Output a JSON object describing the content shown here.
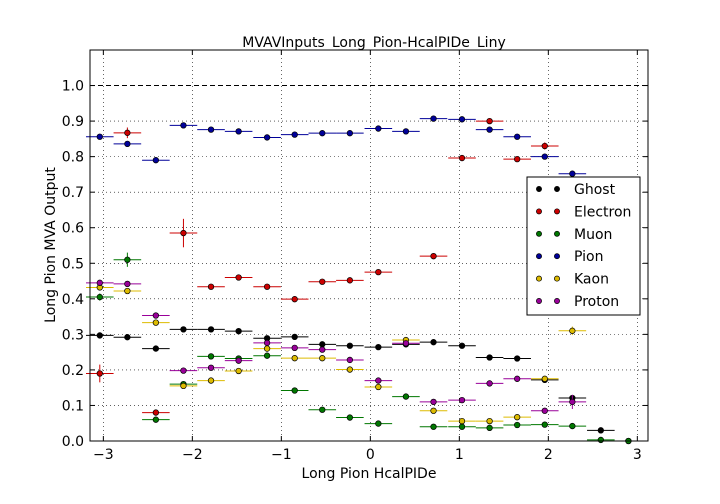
{
  "chart_data": {
    "type": "scatter",
    "title": "MVAVInputs_Long_Pion-HcalPIDe_Liny",
    "xlabel": "Long Pion HcalPIDe",
    "ylabel": "Long Pion MVA Output",
    "xlim": [
      -3.15,
      3.12
    ],
    "ylim": [
      0.0,
      1.1
    ],
    "xticks": [
      -3,
      -2,
      -1,
      0,
      1,
      2,
      3
    ],
    "yticks": [
      0.0,
      0.1,
      0.2,
      0.3,
      0.4,
      0.5,
      0.6,
      0.7,
      0.8,
      0.9,
      1.0
    ],
    "ytick_labels": [
      "0.0",
      "0.1",
      "0.2",
      "0.3",
      "0.4",
      "0.5",
      "0.6",
      "0.7",
      "0.8",
      "0.9",
      "1.0"
    ],
    "xtick_labels": [
      "−3",
      "−2",
      "−1",
      "0",
      "1",
      "2",
      "3"
    ],
    "grid": true,
    "reference_line": 1.0,
    "bin_half_width": 0.155,
    "legend_position": "right",
    "series": [
      {
        "name": "Ghost",
        "color": "#000000",
        "x": [
          -3.04,
          -2.73,
          -2.41,
          -2.1,
          -1.79,
          -1.48,
          -1.16,
          -0.85,
          -0.54,
          -0.23,
          0.09,
          0.4,
          0.71,
          1.03,
          1.34,
          1.65,
          1.96,
          2.27,
          2.59,
          2.9
        ],
        "y": [
          0.297,
          0.292,
          0.26,
          0.314,
          0.314,
          0.309,
          0.289,
          0.293,
          0.272,
          0.268,
          0.264,
          0.272,
          0.278,
          0.268,
          0.235,
          0.232,
          0.172,
          0.121,
          0.03,
          0.0
        ],
        "err": [
          0.006,
          0.006,
          0.005,
          0.004,
          0.004,
          0.004,
          0.004,
          0.004,
          0.004,
          0.004,
          0.004,
          0.004,
          0.004,
          0.004,
          0.004,
          0.004,
          0.004,
          0.004,
          0.004,
          0.004
        ]
      },
      {
        "name": "Electron",
        "color": "#cc0000",
        "x": [
          -3.04,
          -2.73,
          -2.41,
          -2.1,
          -1.79,
          -1.48,
          -1.16,
          -0.85,
          -0.54,
          -0.23,
          0.09,
          0.71,
          1.03,
          1.34,
          1.65,
          1.96
        ],
        "y": [
          0.19,
          0.867,
          0.08,
          0.585,
          0.434,
          0.46,
          0.434,
          0.399,
          0.448,
          0.452,
          0.475,
          0.52,
          0.796,
          0.9,
          0.793,
          0.83
        ],
        "err": [
          0.025,
          0.015,
          0.008,
          0.04,
          0.004,
          0.004,
          0.004,
          0.004,
          0.004,
          0.004,
          0.004,
          0.004,
          0.004,
          0.004,
          0.004,
          0.01
        ]
      },
      {
        "name": "Muon",
        "color": "#007700",
        "x": [
          -3.04,
          -2.73,
          -2.41,
          -2.1,
          -1.79,
          -1.48,
          -1.16,
          -0.85,
          -0.54,
          -0.23,
          0.09,
          0.4,
          0.71,
          1.03,
          1.34,
          1.65,
          1.96,
          2.27,
          2.59,
          2.9
        ],
        "y": [
          0.405,
          0.51,
          0.06,
          0.16,
          0.238,
          0.232,
          0.24,
          0.142,
          0.088,
          0.066,
          0.049,
          0.125,
          0.04,
          0.04,
          0.037,
          0.045,
          0.046,
          0.042,
          0.003,
          0.0
        ],
        "err": [
          0.01,
          0.02,
          0.005,
          0.005,
          0.004,
          0.004,
          0.004,
          0.004,
          0.004,
          0.004,
          0.004,
          0.004,
          0.004,
          0.004,
          0.004,
          0.004,
          0.004,
          0.004,
          0.004,
          0.004
        ]
      },
      {
        "name": "Pion",
        "color": "#000099",
        "x": [
          -3.04,
          -2.73,
          -2.41,
          -2.1,
          -1.79,
          -1.48,
          -1.16,
          -0.85,
          -0.54,
          -0.23,
          0.09,
          0.4,
          0.71,
          1.03,
          1.34,
          1.65,
          1.96,
          2.27
        ],
        "y": [
          0.856,
          0.836,
          0.79,
          0.888,
          0.876,
          0.871,
          0.854,
          0.862,
          0.866,
          0.866,
          0.879,
          0.871,
          0.907,
          0.905,
          0.876,
          0.856,
          0.8,
          0.752
        ],
        "err": [
          0.003,
          0.003,
          0.003,
          0.003,
          0.003,
          0.003,
          0.003,
          0.003,
          0.003,
          0.003,
          0.003,
          0.003,
          0.003,
          0.003,
          0.003,
          0.003,
          0.003,
          0.003
        ]
      },
      {
        "name": "Kaon",
        "color": "#ddbb00",
        "x": [
          -3.04,
          -2.73,
          -2.41,
          -2.1,
          -1.79,
          -1.48,
          -1.16,
          -0.85,
          -0.54,
          -0.23,
          0.09,
          0.4,
          0.71,
          1.03,
          1.34,
          1.65,
          1.96,
          2.27
        ],
        "y": [
          0.432,
          0.422,
          0.333,
          0.155,
          0.17,
          0.197,
          0.26,
          0.233,
          0.233,
          0.201,
          0.152,
          0.284,
          0.085,
          0.056,
          0.056,
          0.067,
          0.175,
          0.31
        ],
        "err": [
          0.005,
          0.005,
          0.005,
          0.005,
          0.004,
          0.004,
          0.004,
          0.004,
          0.004,
          0.004,
          0.004,
          0.004,
          0.004,
          0.004,
          0.004,
          0.004,
          0.004,
          0.012
        ]
      },
      {
        "name": "Proton",
        "color": "#990099",
        "x": [
          -3.04,
          -2.73,
          -2.41,
          -2.1,
          -1.79,
          -1.48,
          -1.16,
          -0.85,
          -0.54,
          -0.23,
          0.09,
          0.4,
          0.71,
          1.03,
          1.34,
          1.65,
          1.96,
          2.27
        ],
        "y": [
          0.445,
          0.442,
          0.353,
          0.198,
          0.206,
          0.226,
          0.276,
          0.262,
          0.257,
          0.228,
          0.17,
          0.275,
          0.11,
          0.115,
          0.162,
          0.175,
          0.085,
          0.11
        ],
        "err": [
          0.005,
          0.005,
          0.005,
          0.005,
          0.004,
          0.004,
          0.004,
          0.004,
          0.004,
          0.004,
          0.004,
          0.004,
          0.004,
          0.004,
          0.004,
          0.004,
          0.006,
          0.02
        ]
      }
    ]
  }
}
